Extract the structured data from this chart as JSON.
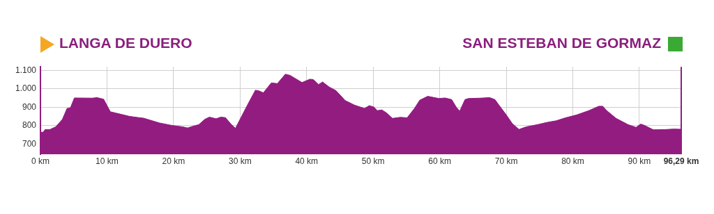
{
  "chart_data": {
    "type": "area",
    "annotations": [
      "LANGA DE DUERO",
      "SAN ESTEBAN DE GORMAZ"
    ],
    "x": [
      0,
      0.4,
      0.7,
      1.4,
      2.3,
      3.3,
      4.0,
      4.5,
      5.1,
      7.8,
      8.5,
      9.5,
      10.5,
      13.4,
      14.8,
      15.5,
      17.9,
      19.7,
      21.4,
      22.1,
      22.8,
      23.8,
      24.7,
      25.4,
      26.4,
      27.1,
      27.8,
      28.7,
      29.3,
      30,
      31.1,
      32.3,
      32.8,
      33.5,
      34.7,
      35.6,
      36.8,
      37.5,
      39.3,
      40.5,
      41.0,
      41.8,
      42.4,
      43.4,
      44.4,
      45.8,
      47.2,
      48.2,
      48.7,
      49.4,
      50.1,
      50.6,
      51.3,
      52.0,
      52.9,
      54.1,
      55.1,
      56.2,
      57.0,
      58.2,
      59.9,
      60.8,
      61.8,
      62.5,
      63.0,
      63.8,
      64.3,
      66.1,
      67.5,
      68.3,
      68.9,
      69.9,
      70.9,
      71.9,
      73.0,
      74.7,
      76.1,
      77.5,
      78.9,
      80.6,
      82.4,
      83.9,
      84.5,
      85.1,
      86.5,
      88.3,
      89.5,
      90.2,
      90.7,
      92.1,
      93.8,
      95.1,
      96.29
    ],
    "values": [
      765,
      765,
      779,
      779,
      794,
      835,
      894,
      897,
      951,
      950,
      953,
      944,
      876,
      851,
      844,
      841,
      815,
      802,
      794,
      788,
      796,
      806,
      835,
      847,
      838,
      847,
      844,
      806,
      786,
      835,
      912,
      993,
      990,
      979,
      1033,
      1029,
      1080,
      1074,
      1035,
      1053,
      1051,
      1024,
      1038,
      1010,
      991,
      937,
      912,
      900,
      894,
      909,
      902,
      882,
      886,
      870,
      840,
      846,
      843,
      894,
      939,
      960,
      948,
      951,
      942,
      900,
      879,
      942,
      948,
      950,
      953,
      942,
      912,
      864,
      812,
      780,
      794,
      806,
      818,
      827,
      843,
      859,
      882,
      906,
      906,
      882,
      840,
      806,
      791,
      809,
      803,
      778,
      779,
      782,
      781
    ],
    "color": "#931c80",
    "xlim": [
      0,
      96.29
    ],
    "xticks": [
      {
        "value": 0,
        "label": "0 km"
      },
      {
        "value": 10,
        "label": "10 km"
      },
      {
        "value": 20,
        "label": "20 km"
      },
      {
        "value": 30,
        "label": "30 km"
      },
      {
        "value": 40,
        "label": "40 km"
      },
      {
        "value": 50,
        "label": "50 km"
      },
      {
        "value": 60,
        "label": "60 km"
      },
      {
        "value": 70,
        "label": "70 km"
      },
      {
        "value": 80,
        "label": "80 km"
      },
      {
        "value": 90,
        "label": "90 km"
      },
      {
        "value": 96.29,
        "label": "96,29 km"
      }
    ],
    "ylim": [
      645,
      1120
    ],
    "yticks": [
      700,
      800,
      900,
      {
        "value": 1000,
        "label": "1.000"
      },
      {
        "value": 1100,
        "label": "1.100"
      }
    ],
    "grid": true,
    "ref_lines": [
      {
        "axis": "x",
        "value": 96.29,
        "color": "#931c80"
      }
    ]
  }
}
